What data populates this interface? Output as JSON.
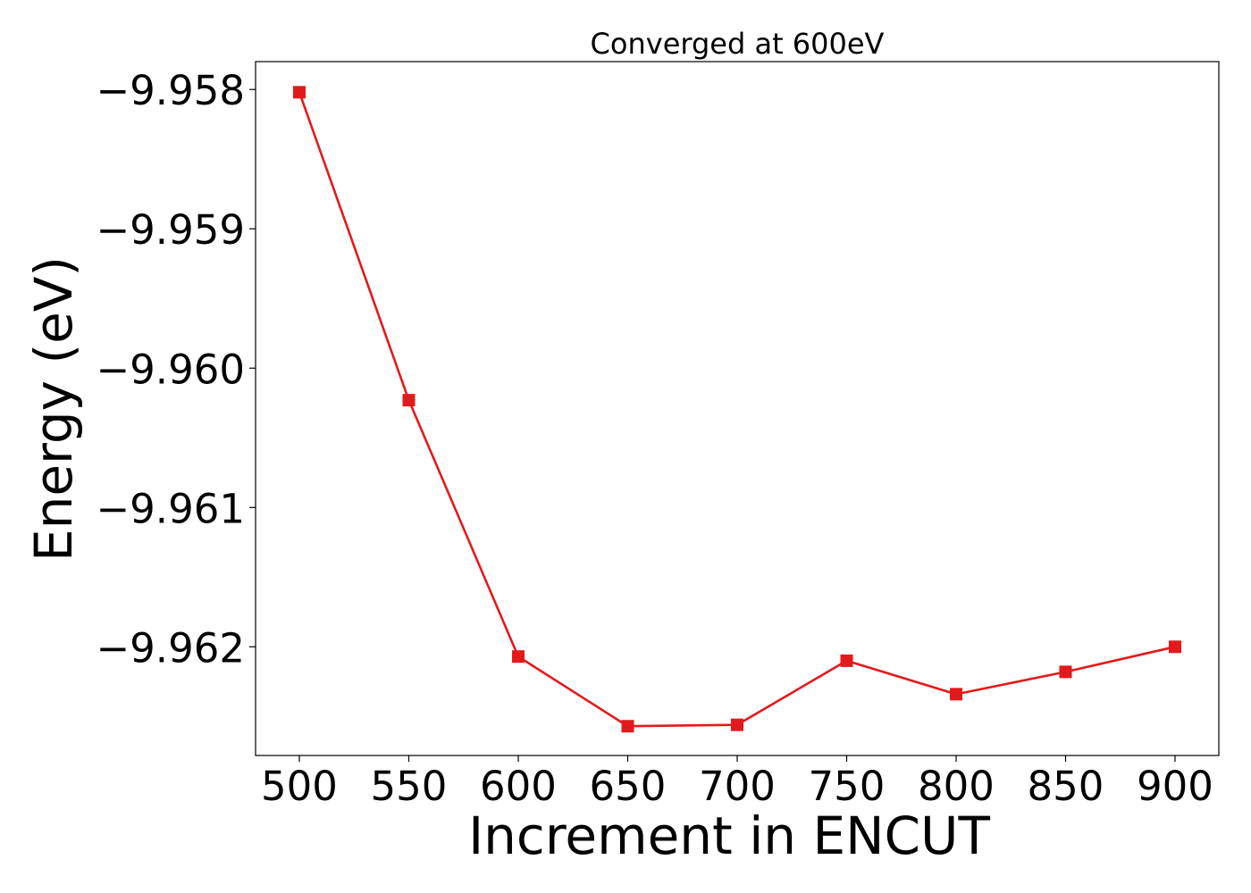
{
  "chart_data": {
    "type": "line",
    "title": "Converged at 600eV",
    "xlabel": "Increment in ENCUT",
    "ylabel": "Energy (eV)",
    "x": [
      500,
      550,
      600,
      650,
      700,
      750,
      800,
      850,
      900
    ],
    "series": [
      {
        "values": [
          -9.95802,
          -9.96023,
          -9.96207,
          -9.96257,
          -9.96256,
          -9.9621,
          -9.96234,
          -9.96218,
          -9.962
        ],
        "color": "#e31a1c",
        "marker": "square"
      }
    ],
    "xticks": [
      500,
      550,
      600,
      650,
      700,
      750,
      800,
      850,
      900
    ],
    "xtick_labels": [
      "500",
      "550",
      "600",
      "650",
      "700",
      "750",
      "800",
      "850",
      "900"
    ],
    "yticks": [
      -9.958,
      -9.959,
      -9.96,
      -9.961,
      -9.962
    ],
    "ytick_labels": [
      "−9.958",
      "−9.959",
      "−9.960",
      "−9.961",
      "−9.962"
    ],
    "xlim": [
      480,
      920
    ],
    "ylim": [
      -9.96278,
      -9.9578
    ],
    "grid": false,
    "legend": false
  }
}
